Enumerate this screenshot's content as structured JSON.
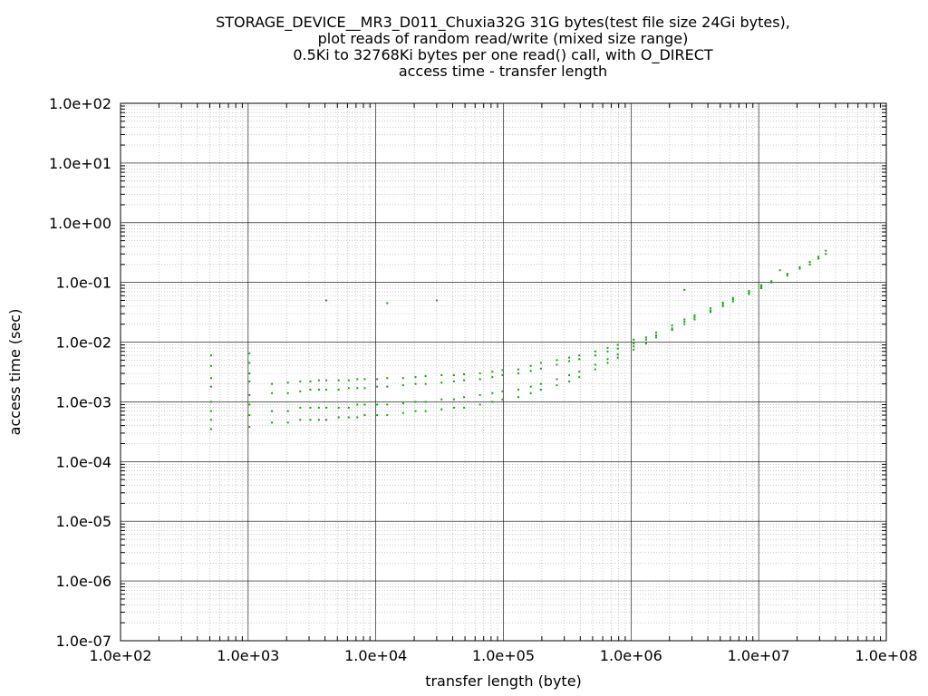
{
  "chart_data": {
    "type": "scatter",
    "title_lines": [
      "STORAGE_DEVICE__MR3_D011_Chuxia32G 31G bytes(test file size 24Gi bytes),",
      "plot reads of random read/write (mixed size range)",
      "0.5Ki to 32768Ki bytes per one read() call, with O_DIRECT",
      "access time - transfer length"
    ],
    "xlabel": "transfer length (byte)",
    "ylabel": "access time (sec)",
    "x_scale": "log",
    "y_scale": "log",
    "xlim": [
      100,
      100000000
    ],
    "ylim": [
      1e-07,
      100
    ],
    "x_tick_labels": [
      "1.0e+02",
      "1.0e+03",
      "1.0e+04",
      "1.0e+05",
      "1.0e+06",
      "1.0e+07",
      "1.0e+08"
    ],
    "y_tick_labels": [
      "1.0e+02",
      "1.0e+01",
      "1.0e+00",
      "1.0e-01",
      "1.0e-02",
      "1.0e-03",
      "1.0e-04",
      "1.0e-05",
      "1.0e-06",
      "1.0e-07"
    ],
    "grid": true,
    "marker_color": "#00b000",
    "series": [
      {
        "points": [
          [
            512,
            0.00035
          ],
          [
            512,
            0.0005
          ],
          [
            512,
            0.0007
          ],
          [
            512,
            0.001
          ],
          [
            512,
            0.0018
          ],
          [
            512,
            0.0025
          ],
          [
            512,
            0.004
          ],
          [
            512,
            0.006
          ],
          [
            1024,
            0.00038
          ],
          [
            1024,
            0.0006
          ],
          [
            1024,
            0.0009
          ],
          [
            1024,
            0.0013
          ],
          [
            1024,
            0.0022
          ],
          [
            1024,
            0.003
          ],
          [
            1024,
            0.0045
          ],
          [
            1024,
            0.0065
          ],
          [
            1536,
            0.00045
          ],
          [
            1536,
            0.0007
          ],
          [
            1536,
            0.0014
          ],
          [
            1536,
            0.002
          ],
          [
            2048,
            0.00045
          ],
          [
            2048,
            0.0007
          ],
          [
            2048,
            0.0014
          ],
          [
            2048,
            0.0021
          ],
          [
            2560,
            0.0005
          ],
          [
            2560,
            0.0008
          ],
          [
            2560,
            0.0015
          ],
          [
            2560,
            0.0022
          ],
          [
            3072,
            0.0005
          ],
          [
            3072,
            0.0008
          ],
          [
            3072,
            0.0016
          ],
          [
            3072,
            0.0022
          ],
          [
            3584,
            0.0005
          ],
          [
            3584,
            0.0008
          ],
          [
            3584,
            0.0016
          ],
          [
            3584,
            0.0023
          ],
          [
            4096,
            0.0005
          ],
          [
            4096,
            0.0008
          ],
          [
            4096,
            0.0016
          ],
          [
            4096,
            0.0023
          ],
          [
            4096,
            0.05
          ],
          [
            5120,
            0.00055
          ],
          [
            5120,
            0.0008
          ],
          [
            5120,
            0.0016
          ],
          [
            5120,
            0.0023
          ],
          [
            6144,
            0.00055
          ],
          [
            6144,
            0.0008
          ],
          [
            6144,
            0.0017
          ],
          [
            6144,
            0.0023
          ],
          [
            7168,
            0.00055
          ],
          [
            7168,
            0.0009
          ],
          [
            7168,
            0.0017
          ],
          [
            7168,
            0.0024
          ],
          [
            8192,
            0.0006
          ],
          [
            8192,
            0.0009
          ],
          [
            8192,
            0.0017
          ],
          [
            8192,
            0.0024
          ],
          [
            10240,
            0.0006
          ],
          [
            10240,
            0.0009
          ],
          [
            10240,
            0.0018
          ],
          [
            10240,
            0.0024
          ],
          [
            12288,
            0.0006
          ],
          [
            12288,
            0.0009
          ],
          [
            12288,
            0.0018
          ],
          [
            12288,
            0.0025
          ],
          [
            12288,
            0.045
          ],
          [
            16384,
            0.00065
          ],
          [
            16384,
            0.00095
          ],
          [
            16384,
            0.0019
          ],
          [
            16384,
            0.0025
          ],
          [
            20480,
            0.0007
          ],
          [
            20480,
            0.001
          ],
          [
            20480,
            0.002
          ],
          [
            20480,
            0.0026
          ],
          [
            24576,
            0.0007
          ],
          [
            24576,
            0.001
          ],
          [
            24576,
            0.002
          ],
          [
            24576,
            0.0027
          ],
          [
            30000,
            0.05
          ],
          [
            32768,
            0.00075
          ],
          [
            32768,
            0.0011
          ],
          [
            32768,
            0.0021
          ],
          [
            32768,
            0.0028
          ],
          [
            40960,
            0.0008
          ],
          [
            40960,
            0.0011
          ],
          [
            40960,
            0.0022
          ],
          [
            40960,
            0.0028
          ],
          [
            49152,
            0.0008
          ],
          [
            49152,
            0.0012
          ],
          [
            49152,
            0.0023
          ],
          [
            49152,
            0.0029
          ],
          [
            65536,
            0.0009
          ],
          [
            65536,
            0.0013
          ],
          [
            65536,
            0.0024
          ],
          [
            65536,
            0.003
          ],
          [
            81920,
            0.001
          ],
          [
            81920,
            0.0014
          ],
          [
            81920,
            0.0026
          ],
          [
            81920,
            0.0032
          ],
          [
            98304,
            0.0011
          ],
          [
            98304,
            0.0015
          ],
          [
            98304,
            0.0028
          ],
          [
            98304,
            0.0034
          ],
          [
            131072,
            0.0012
          ],
          [
            131072,
            0.0016
          ],
          [
            131072,
            0.003
          ],
          [
            131072,
            0.0035
          ],
          [
            163840,
            0.0014
          ],
          [
            163840,
            0.0018
          ],
          [
            163840,
            0.0033
          ],
          [
            163840,
            0.004
          ],
          [
            196608,
            0.0016
          ],
          [
            196608,
            0.002
          ],
          [
            196608,
            0.0036
          ],
          [
            196608,
            0.0045
          ],
          [
            262144,
            0.0019
          ],
          [
            262144,
            0.0024
          ],
          [
            262144,
            0.0042
          ],
          [
            262144,
            0.005
          ],
          [
            327680,
            0.0022
          ],
          [
            327680,
            0.0028
          ],
          [
            327680,
            0.0048
          ],
          [
            327680,
            0.0055
          ],
          [
            393216,
            0.0026
          ],
          [
            393216,
            0.0032
          ],
          [
            393216,
            0.0052
          ],
          [
            393216,
            0.006
          ],
          [
            524288,
            0.0035
          ],
          [
            524288,
            0.0042
          ],
          [
            524288,
            0.006
          ],
          [
            524288,
            0.007
          ],
          [
            655360,
            0.0045
          ],
          [
            655360,
            0.0052
          ],
          [
            655360,
            0.007
          ],
          [
            655360,
            0.008
          ],
          [
            786432,
            0.0055
          ],
          [
            786432,
            0.0062
          ],
          [
            786432,
            0.0078
          ],
          [
            786432,
            0.009
          ],
          [
            1048576,
            0.0075
          ],
          [
            1048576,
            0.0085
          ],
          [
            1048576,
            0.0095
          ],
          [
            1048576,
            0.011
          ],
          [
            1310720,
            0.0095
          ],
          [
            1310720,
            0.011
          ],
          [
            1310720,
            0.012
          ],
          [
            1572864,
            0.012
          ],
          [
            1572864,
            0.013
          ],
          [
            1572864,
            0.0145
          ],
          [
            2097152,
            0.016
          ],
          [
            2097152,
            0.017
          ],
          [
            2097152,
            0.019
          ],
          [
            2621440,
            0.02
          ],
          [
            2621440,
            0.022
          ],
          [
            2621440,
            0.024
          ],
          [
            2621440,
            0.075
          ],
          [
            3145728,
            0.024
          ],
          [
            3145728,
            0.026
          ],
          [
            3145728,
            0.028
          ],
          [
            4194304,
            0.032
          ],
          [
            4194304,
            0.034
          ],
          [
            4194304,
            0.037
          ],
          [
            5242880,
            0.04
          ],
          [
            5242880,
            0.043
          ],
          [
            5242880,
            0.046
          ],
          [
            6291456,
            0.048
          ],
          [
            6291456,
            0.052
          ],
          [
            6291456,
            0.055
          ],
          [
            8388608,
            0.064
          ],
          [
            8388608,
            0.068
          ],
          [
            8388608,
            0.072
          ],
          [
            10485760,
            0.08
          ],
          [
            10485760,
            0.085
          ],
          [
            10485760,
            0.09
          ],
          [
            12582912,
            0.1
          ],
          [
            12582912,
            0.105
          ],
          [
            14680064,
            0.16
          ],
          [
            16777216,
            0.13
          ],
          [
            16777216,
            0.14
          ],
          [
            20971520,
            0.17
          ],
          [
            20971520,
            0.18
          ],
          [
            25165824,
            0.2
          ],
          [
            25165824,
            0.22
          ],
          [
            29360128,
            0.25
          ],
          [
            29360128,
            0.27
          ],
          [
            33554432,
            0.3
          ],
          [
            33554432,
            0.34
          ]
        ]
      }
    ]
  }
}
